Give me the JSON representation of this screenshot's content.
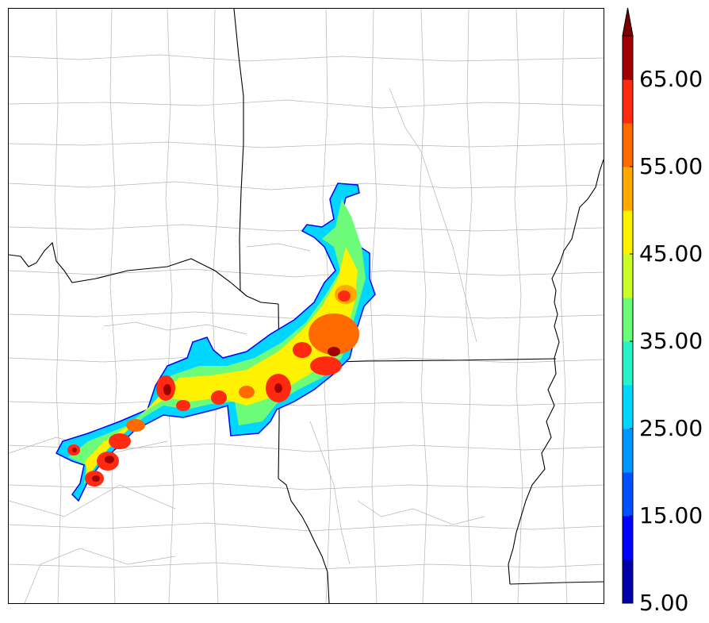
{
  "colorbar": {
    "labels": [
      "5.00",
      "15.00",
      "25.00",
      "35.00",
      "45.00",
      "55.00",
      "65.00"
    ],
    "levels": [
      5,
      10,
      15,
      20,
      25,
      30,
      35,
      40,
      45,
      50,
      55,
      60,
      65,
      70
    ],
    "colors": [
      "#0000a8",
      "#0000ff",
      "#0050ff",
      "#0096ff",
      "#00d6ff",
      "#28f2c8",
      "#6cfc7a",
      "#c8ff28",
      "#fff200",
      "#ffa800",
      "#ff6a00",
      "#ff2a10",
      "#a00000"
    ],
    "extend_color": "#7a0000"
  },
  "map": {
    "state_line_color": "#000000",
    "county_line_color": "#aaaaaa"
  }
}
